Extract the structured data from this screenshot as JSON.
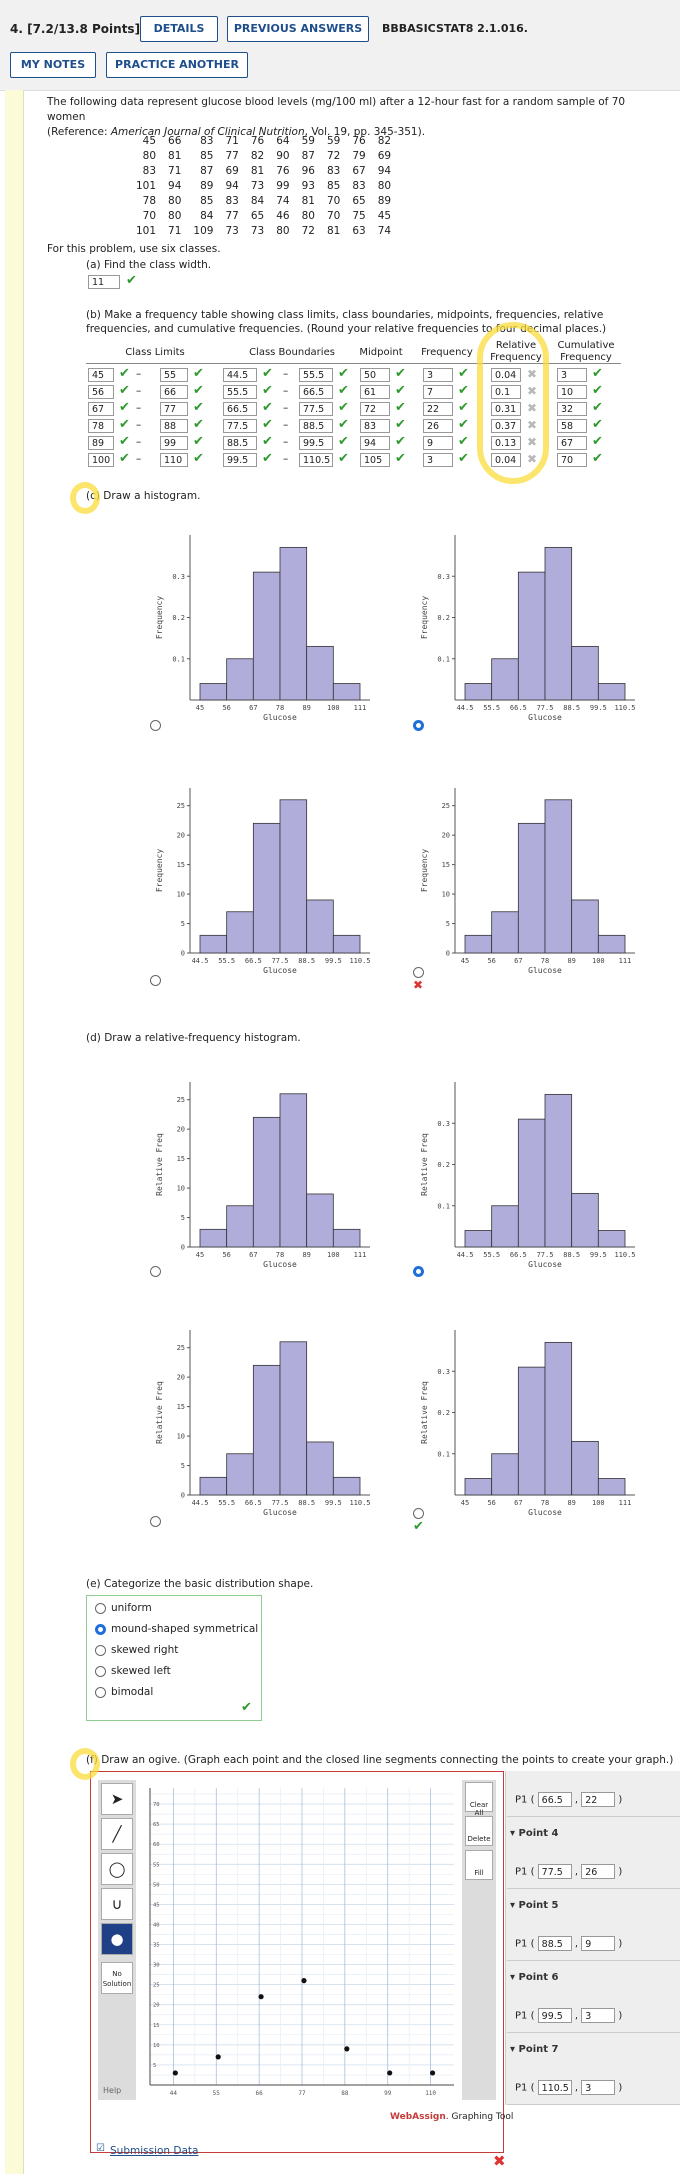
{
  "header": {
    "question_number": "4.  [7.2/13.8 Points]",
    "details_button": "DETAILS",
    "previous_answers_button": "PREVIOUS ANSWERS",
    "code": "BBBASICSTAT8 2.1.016.",
    "my_notes_button": "MY NOTES",
    "practice_button": "PRACTICE ANOTHER"
  },
  "intro": {
    "line1": "The following data represent glucose blood levels (mg/100 ml) after a 12-hour fast for a random sample of 70 women",
    "ref_prefix": "(Reference: ",
    "ref_journal": "American Journal of Clinical Nutrition",
    "ref_suffix": ", Vol. 19, pp. 345-351).",
    "classes_note": "For this problem, use six classes."
  },
  "raw_data": [
    [
      45,
      66,
      83,
      71,
      76,
      64,
      59,
      59,
      76,
      82
    ],
    [
      80,
      81,
      85,
      77,
      82,
      90,
      87,
      72,
      79,
      69
    ],
    [
      83,
      71,
      87,
      69,
      81,
      76,
      96,
      83,
      67,
      94
    ],
    [
      101,
      94,
      89,
      94,
      73,
      99,
      93,
      85,
      83,
      80
    ],
    [
      78,
      80,
      85,
      83,
      84,
      74,
      81,
      70,
      65,
      89
    ],
    [
      70,
      80,
      84,
      77,
      65,
      46,
      80,
      70,
      75,
      45
    ],
    [
      101,
      71,
      109,
      73,
      73,
      80,
      72,
      81,
      63,
      74
    ]
  ],
  "part_a": {
    "prompt": "(a) Find the class width.",
    "answer": "11"
  },
  "part_b": {
    "prompt": "(b) Make a frequency table showing class limits, class boundaries, midpoints, frequencies, relative frequencies, and cumulative frequencies. (Round your relative frequencies to four decimal places.)",
    "headers": {
      "limits": "Class Limits",
      "boundaries": "Class Boundaries",
      "midpoint": "Midpoint",
      "frequency": "Frequency",
      "relative": "Relative Frequency",
      "cumulative": "Cumulative Frequency"
    },
    "dash": "–",
    "rows": [
      {
        "ll": "45",
        "ul": "55",
        "lb": "44.5",
        "ub": "55.5",
        "mid": "50",
        "freq": "3",
        "rel": "0.04",
        "cum": "3"
      },
      {
        "ll": "56",
        "ul": "66",
        "lb": "55.5",
        "ub": "66.5",
        "mid": "61",
        "freq": "7",
        "rel": "0.1",
        "cum": "10"
      },
      {
        "ll": "67",
        "ul": "77",
        "lb": "66.5",
        "ub": "77.5",
        "mid": "72",
        "freq": "22",
        "rel": "0.31",
        "cum": "32"
      },
      {
        "ll": "78",
        "ul": "88",
        "lb": "77.5",
        "ub": "88.5",
        "mid": "83",
        "freq": "26",
        "rel": "0.37",
        "cum": "58"
      },
      {
        "ll": "89",
        "ul": "99",
        "lb": "88.5",
        "ub": "99.5",
        "mid": "94",
        "freq": "9",
        "rel": "0.13",
        "cum": "67"
      },
      {
        "ll": "100",
        "ul": "110",
        "lb": "99.5",
        "ub": "110.5",
        "mid": "105",
        "freq": "3",
        "rel": "0.04",
        "cum": "70"
      }
    ]
  },
  "part_c": {
    "prompt": "(c) Draw a histogram."
  },
  "part_d": {
    "prompt": "(d) Draw a relative-frequency histogram."
  },
  "part_e": {
    "prompt": "(e) Categorize the basic distribution shape.",
    "options": [
      "uniform",
      "mound-shaped symmetrical",
      "skewed right",
      "skewed left",
      "bimodal"
    ],
    "selected": 1
  },
  "part_f": {
    "prompt": "(f) Draw an ogive. (Graph each point and the closed line segments connecting the points to create your graph.)",
    "no_solution": "No Solution",
    "help": "Help",
    "clear_all": "Clear All",
    "delete": "Delete",
    "fill": "Fill",
    "brand_web": "Web",
    "brand_assign": "Assign",
    "brand_suffix": ". Graphing Tool",
    "submission_link": "Submission Data",
    "panel": [
      {
        "type": "point",
        "label": "P1",
        "x": "66.5",
        "y": "22"
      },
      {
        "type": "title",
        "label": "Point 4"
      },
      {
        "type": "point",
        "label": "P1",
        "x": "77.5",
        "y": "26"
      },
      {
        "type": "title",
        "label": "Point 5"
      },
      {
        "type": "point",
        "label": "P1",
        "x": "88.5",
        "y": "9"
      },
      {
        "type": "title",
        "label": "Point 6"
      },
      {
        "type": "point",
        "label": "P1",
        "x": "99.5",
        "y": "3"
      },
      {
        "type": "title",
        "label": "Point 7"
      },
      {
        "type": "point",
        "label": "P1",
        "x": "110.5",
        "y": "3"
      }
    ]
  },
  "chart_data": [
    {
      "type": "bar",
      "id": "c1",
      "xlabel": "Glucose",
      "ylabel": "Frequency",
      "ticks": [
        "45",
        "56",
        "67",
        "78",
        "89",
        "100",
        "111"
      ],
      "values": [
        0.04,
        0.1,
        0.31,
        0.37,
        0.13,
        0.04
      ],
      "ymax": 0.4,
      "yticks": [
        "0.1",
        "0.2",
        "0.3"
      ],
      "ytick_values": [
        0.1,
        0.2,
        0.3
      ]
    },
    {
      "type": "bar",
      "id": "c2",
      "xlabel": "Glucose",
      "ylabel": "Frequency",
      "ticks": [
        "44.5",
        "55.5",
        "66.5",
        "77.5",
        "88.5",
        "99.5",
        "110.5"
      ],
      "values": [
        0.04,
        0.1,
        0.31,
        0.37,
        0.13,
        0.04
      ],
      "ymax": 0.4,
      "yticks": [
        "0.1",
        "0.2",
        "0.3"
      ],
      "ytick_values": [
        0.1,
        0.2,
        0.3
      ]
    },
    {
      "type": "bar",
      "id": "c3",
      "xlabel": "Glucose",
      "ylabel": "Frequency",
      "ticks": [
        "44.5",
        "55.5",
        "66.5",
        "77.5",
        "88.5",
        "99.5",
        "110.5"
      ],
      "values": [
        3,
        7,
        22,
        26,
        9,
        3
      ],
      "ymax": 28,
      "yticks": [
        "0",
        "5",
        "10",
        "15",
        "20",
        "25"
      ],
      "ytick_values": [
        0,
        5,
        10,
        15,
        20,
        25
      ]
    },
    {
      "type": "bar",
      "id": "c4",
      "xlabel": "Glucose",
      "ylabel": "Frequency",
      "ticks": [
        "45",
        "56",
        "67",
        "78",
        "89",
        "100",
        "111"
      ],
      "values": [
        3,
        7,
        22,
        26,
        9,
        3
      ],
      "ymax": 28,
      "yticks": [
        "0",
        "5",
        "10",
        "15",
        "20",
        "25"
      ],
      "ytick_values": [
        0,
        5,
        10,
        15,
        20,
        25
      ]
    },
    {
      "type": "bar",
      "id": "d1",
      "xlabel": "Glucose",
      "ylabel": "Relative Freq",
      "ticks": [
        "45",
        "56",
        "67",
        "78",
        "89",
        "100",
        "111"
      ],
      "values": [
        3,
        7,
        22,
        26,
        9,
        3
      ],
      "ymax": 28,
      "yticks": [
        "0",
        "5",
        "10",
        "15",
        "20",
        "25"
      ],
      "ytick_values": [
        0,
        5,
        10,
        15,
        20,
        25
      ]
    },
    {
      "type": "bar",
      "id": "d2",
      "xlabel": "Glucose",
      "ylabel": "Relative Freq",
      "ticks": [
        "44.5",
        "55.5",
        "66.5",
        "77.5",
        "88.5",
        "99.5",
        "110.5"
      ],
      "values": [
        0.04,
        0.1,
        0.31,
        0.37,
        0.13,
        0.04
      ],
      "ymax": 0.4,
      "yticks": [
        "0.1",
        "0.2",
        "0.3"
      ],
      "ytick_values": [
        0.1,
        0.2,
        0.3
      ]
    },
    {
      "type": "bar",
      "id": "d3",
      "xlabel": "Glucose",
      "ylabel": "Relative Freq",
      "ticks": [
        "44.5",
        "55.5",
        "66.5",
        "77.5",
        "88.5",
        "99.5",
        "110.5"
      ],
      "values": [
        3,
        7,
        22,
        26,
        9,
        3
      ],
      "ymax": 28,
      "yticks": [
        "0",
        "5",
        "10",
        "15",
        "20",
        "25"
      ],
      "ytick_values": [
        0,
        5,
        10,
        15,
        20,
        25
      ]
    },
    {
      "type": "bar",
      "id": "d4",
      "xlabel": "Glucose",
      "ylabel": "Relative Freq",
      "ticks": [
        "45",
        "56",
        "67",
        "78",
        "89",
        "100",
        "111"
      ],
      "values": [
        0.04,
        0.1,
        0.31,
        0.37,
        0.13,
        0.04
      ],
      "ymax": 0.4,
      "yticks": [
        "0.1",
        "0.2",
        "0.3"
      ],
      "ytick_values": [
        0.1,
        0.2,
        0.3
      ]
    },
    {
      "type": "scatter",
      "id": "ogive",
      "xticks": [
        "44",
        "55",
        "66",
        "77",
        "88",
        "99",
        "110"
      ],
      "xtick_values": [
        44,
        55,
        66,
        77,
        88,
        99,
        110
      ],
      "xlim": [
        38,
        116
      ],
      "yticks": [
        "5",
        "10",
        "15",
        "20",
        "25",
        "30",
        "35",
        "40",
        "45",
        "50",
        "55",
        "60",
        "65",
        "70"
      ],
      "ytick_values": [
        5,
        10,
        15,
        20,
        25,
        30,
        35,
        40,
        45,
        50,
        55,
        60,
        65,
        70
      ],
      "ylim": [
        0,
        74
      ],
      "points": [
        [
          44.5,
          3
        ],
        [
          55.5,
          7
        ],
        [
          66.5,
          22
        ],
        [
          77.5,
          26
        ],
        [
          88.5,
          9
        ],
        [
          99.5,
          3
        ],
        [
          110.5,
          3
        ]
      ]
    }
  ]
}
